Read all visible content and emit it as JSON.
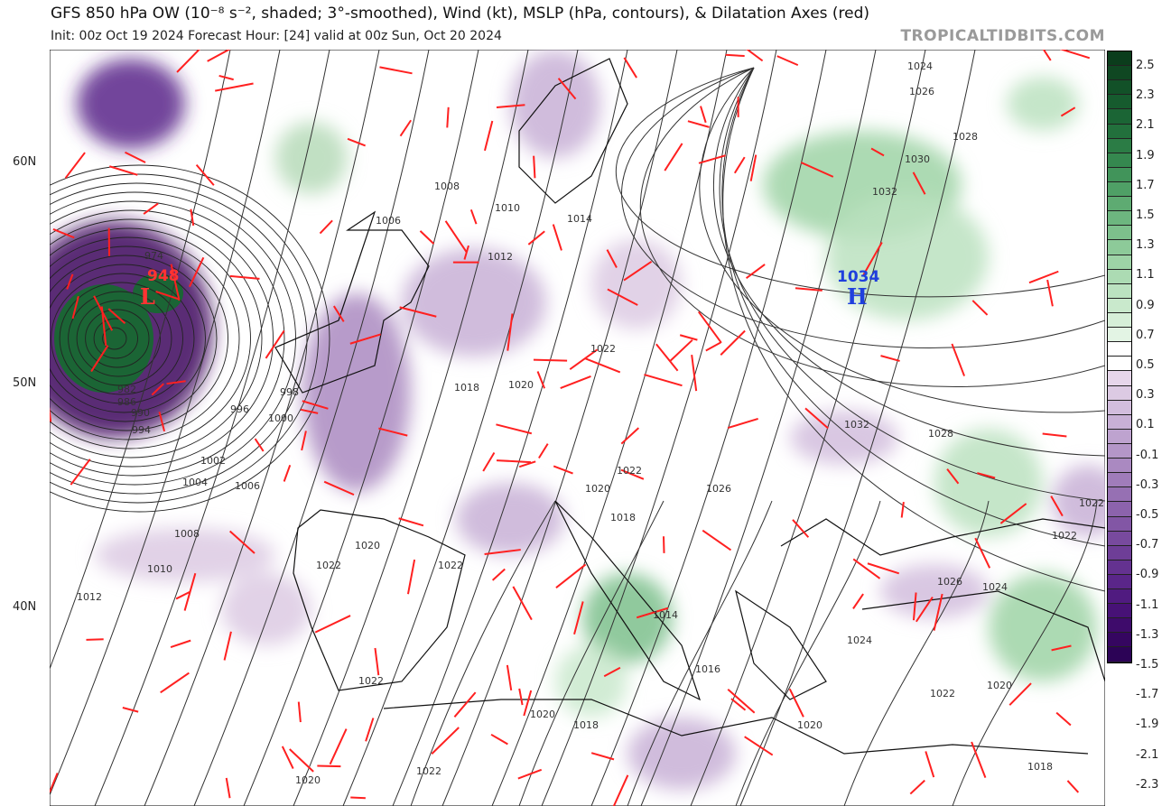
{
  "header": {
    "title": "GFS 850 hPa OW (10⁻⁸ s⁻², shaded; 3°-smoothed), Wind (kt), MSLP (hPa, contours), & Dilatation Axes (red)",
    "subtitle": "Init: 00z Oct 19 2024   Forecast Hour: [24]   valid at 00z Sun, Oct 20 2024",
    "brand": "TROPICALTIDBITS.COM"
  },
  "map": {
    "latitude_labels": [
      "60N",
      "50N",
      "40N"
    ],
    "low": {
      "pressure": "948",
      "symbol": "L",
      "color": "#ff3333"
    },
    "high": {
      "pressure": "1034",
      "symbol": "H",
      "color": "#1f3fdd"
    },
    "isobar_labels": [
      "1024",
      "1026",
      "1028",
      "1030",
      "1032",
      "1008",
      "1006",
      "1010",
      "1014",
      "1012",
      "1022",
      "1018",
      "1020",
      "1028",
      "1032",
      "1022",
      "1026",
      "1020",
      "1018",
      "1022",
      "1022",
      "1026",
      "1024",
      "1024",
      "1014",
      "1016",
      "1022",
      "1020",
      "1020",
      "1020",
      "1018",
      "1022",
      "1020",
      "1018",
      "1022",
      "1022",
      "1022",
      "1020",
      "1008",
      "1004",
      "1006",
      "1002",
      "1010",
      "1012",
      "996",
      "998",
      "1000",
      "994",
      "990",
      "986",
      "982",
      "974"
    ],
    "dilatation_color": "#ff2020",
    "positive_color": "#1b5e2b",
    "negative_color": "#4a1266"
  },
  "colorbar": {
    "labels": [
      "2.5",
      "2.3",
      "2.1",
      "1.9",
      "1.7",
      "1.5",
      "1.3",
      "1.1",
      "0.9",
      "0.7",
      "0.5",
      "0.3",
      "0.1",
      "-0.1",
      "-0.3",
      "-0.5",
      "-0.7",
      "-0.9",
      "-1.1",
      "-1.3",
      "-1.5",
      "-1.7",
      "-1.9",
      "-2.1",
      "-2.3"
    ]
  }
}
